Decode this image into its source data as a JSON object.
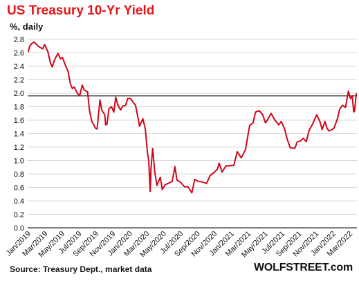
{
  "title": "US Treasury  10-Yr Yield",
  "unit_label": "%, daily",
  "source": "Source: Treasury Dept., market data",
  "brand": "WOLFSTREET.com",
  "colors": {
    "title": "#e8141b",
    "series": "#d0061a",
    "reference_line": "#000000",
    "grid": "#d9d9d9"
  },
  "chart_data": {
    "type": "line",
    "title": "US Treasury  10-Yr Yield",
    "ylabel": "%, daily",
    "xlabel": "",
    "ylim": [
      0.0,
      2.8
    ],
    "grid": true,
    "y_ticks": [
      "0.0",
      "0.2",
      "0.4",
      "0.6",
      "0.8",
      "1.0",
      "1.2",
      "1.4",
      "1.6",
      "1.8",
      "2.0",
      "2.2",
      "2.4",
      "2.6",
      "2.8"
    ],
    "x_ticks": [
      "Jan/2019",
      "Mar/2019",
      "May/2019",
      "Jul/2019",
      "Sep/2019",
      "Nov/2019",
      "Jan/2020",
      "Mar/2020",
      "May/2020",
      "Jul/2020",
      "Sep/2020",
      "Nov/2020",
      "Jan/2021",
      "Mar/2021",
      "May/2021",
      "Jul/2021",
      "Sep/2021",
      "Nov/2021",
      "Jan/2022",
      "Mar/2022"
    ],
    "reference_line": {
      "value": 1.96
    },
    "series": [
      {
        "x": [
          "2019-01-02",
          "2019-01-07",
          "2019-01-15",
          "2019-01-22",
          "2019-02-01",
          "2019-02-12",
          "2019-02-22",
          "2019-03-01",
          "2019-03-12",
          "2019-03-22",
          "2019-03-28",
          "2019-04-05",
          "2019-04-17",
          "2019-04-26",
          "2019-05-03",
          "2019-05-14",
          "2019-05-23",
          "2019-05-31",
          "2019-06-07",
          "2019-06-14",
          "2019-06-25",
          "2019-07-03",
          "2019-07-12",
          "2019-07-19",
          "2019-07-31",
          "2019-08-07",
          "2019-08-15",
          "2019-08-23",
          "2019-08-28",
          "2019-09-03",
          "2019-09-13",
          "2019-09-20",
          "2019-09-30",
          "2019-10-03",
          "2019-10-08",
          "2019-10-15",
          "2019-10-24",
          "2019-11-01",
          "2019-11-08",
          "2019-11-15",
          "2019-11-25",
          "2019-12-03",
          "2019-12-13",
          "2019-12-20",
          "2019-12-31",
          "2020-01-08",
          "2020-01-17",
          "2020-01-27",
          "2020-01-31",
          "2020-02-12",
          "2020-02-21",
          "2020-02-28",
          "2020-03-04",
          "2020-03-09",
          "2020-03-12",
          "2020-03-18",
          "2020-03-25",
          "2020-04-02",
          "2020-04-14",
          "2020-04-21",
          "2020-05-01",
          "2020-05-12",
          "2020-05-26",
          "2020-06-05",
          "2020-06-12",
          "2020-06-24",
          "2020-07-09",
          "2020-07-21",
          "2020-08-04",
          "2020-08-14",
          "2020-08-26",
          "2020-09-10",
          "2020-09-25",
          "2020-10-08",
          "2020-10-21",
          "2020-11-02",
          "2020-11-09",
          "2020-11-19",
          "2020-12-03",
          "2020-12-16",
          "2020-12-31",
          "2021-01-12",
          "2021-01-26",
          "2021-02-10",
          "2021-02-25",
          "2021-03-09",
          "2021-03-18",
          "2021-03-31",
          "2021-04-12",
          "2021-04-22",
          "2021-05-03",
          "2021-05-12",
          "2021-05-24",
          "2021-06-08",
          "2021-06-17",
          "2021-06-29",
          "2021-07-08",
          "2021-07-19",
          "2021-08-04",
          "2021-08-13",
          "2021-08-24",
          "2021-09-03",
          "2021-09-14",
          "2021-09-24",
          "2021-10-05",
          "2021-10-21",
          "2021-11-02",
          "2021-11-09",
          "2021-11-19",
          "2021-11-26",
          "2021-12-03",
          "2021-12-14",
          "2021-12-21",
          "2022-01-03",
          "2022-01-10",
          "2022-01-20",
          "2022-01-31",
          "2022-02-10",
          "2022-02-18",
          "2022-02-24",
          "2022-03-01",
          "2022-03-04",
          "2022-03-10"
        ],
        "values": [
          2.62,
          2.7,
          2.74,
          2.76,
          2.72,
          2.68,
          2.66,
          2.72,
          2.62,
          2.44,
          2.39,
          2.5,
          2.59,
          2.51,
          2.53,
          2.41,
          2.32,
          2.14,
          2.07,
          2.09,
          2.0,
          1.96,
          2.12,
          2.05,
          2.02,
          1.74,
          1.58,
          1.52,
          1.48,
          1.47,
          1.9,
          1.74,
          1.68,
          1.53,
          1.54,
          1.77,
          1.8,
          1.72,
          1.94,
          1.83,
          1.75,
          1.81,
          1.82,
          1.92,
          1.92,
          1.87,
          1.82,
          1.61,
          1.51,
          1.62,
          1.47,
          1.13,
          1.0,
          0.54,
          0.88,
          1.18,
          0.84,
          0.63,
          0.75,
          0.57,
          0.64,
          0.66,
          0.69,
          0.91,
          0.71,
          0.68,
          0.61,
          0.61,
          0.52,
          0.72,
          0.69,
          0.68,
          0.66,
          0.78,
          0.82,
          0.87,
          0.96,
          0.83,
          0.92,
          0.92,
          0.93,
          1.13,
          1.04,
          1.16,
          1.52,
          1.56,
          1.72,
          1.74,
          1.68,
          1.56,
          1.63,
          1.7,
          1.61,
          1.53,
          1.58,
          1.47,
          1.32,
          1.19,
          1.18,
          1.28,
          1.29,
          1.33,
          1.28,
          1.45,
          1.53,
          1.68,
          1.57,
          1.46,
          1.58,
          1.48,
          1.44,
          1.46,
          1.48,
          1.63,
          1.76,
          1.82,
          1.79,
          2.03,
          1.92,
          1.96,
          1.72,
          1.74,
          1.99
        ]
      }
    ]
  }
}
